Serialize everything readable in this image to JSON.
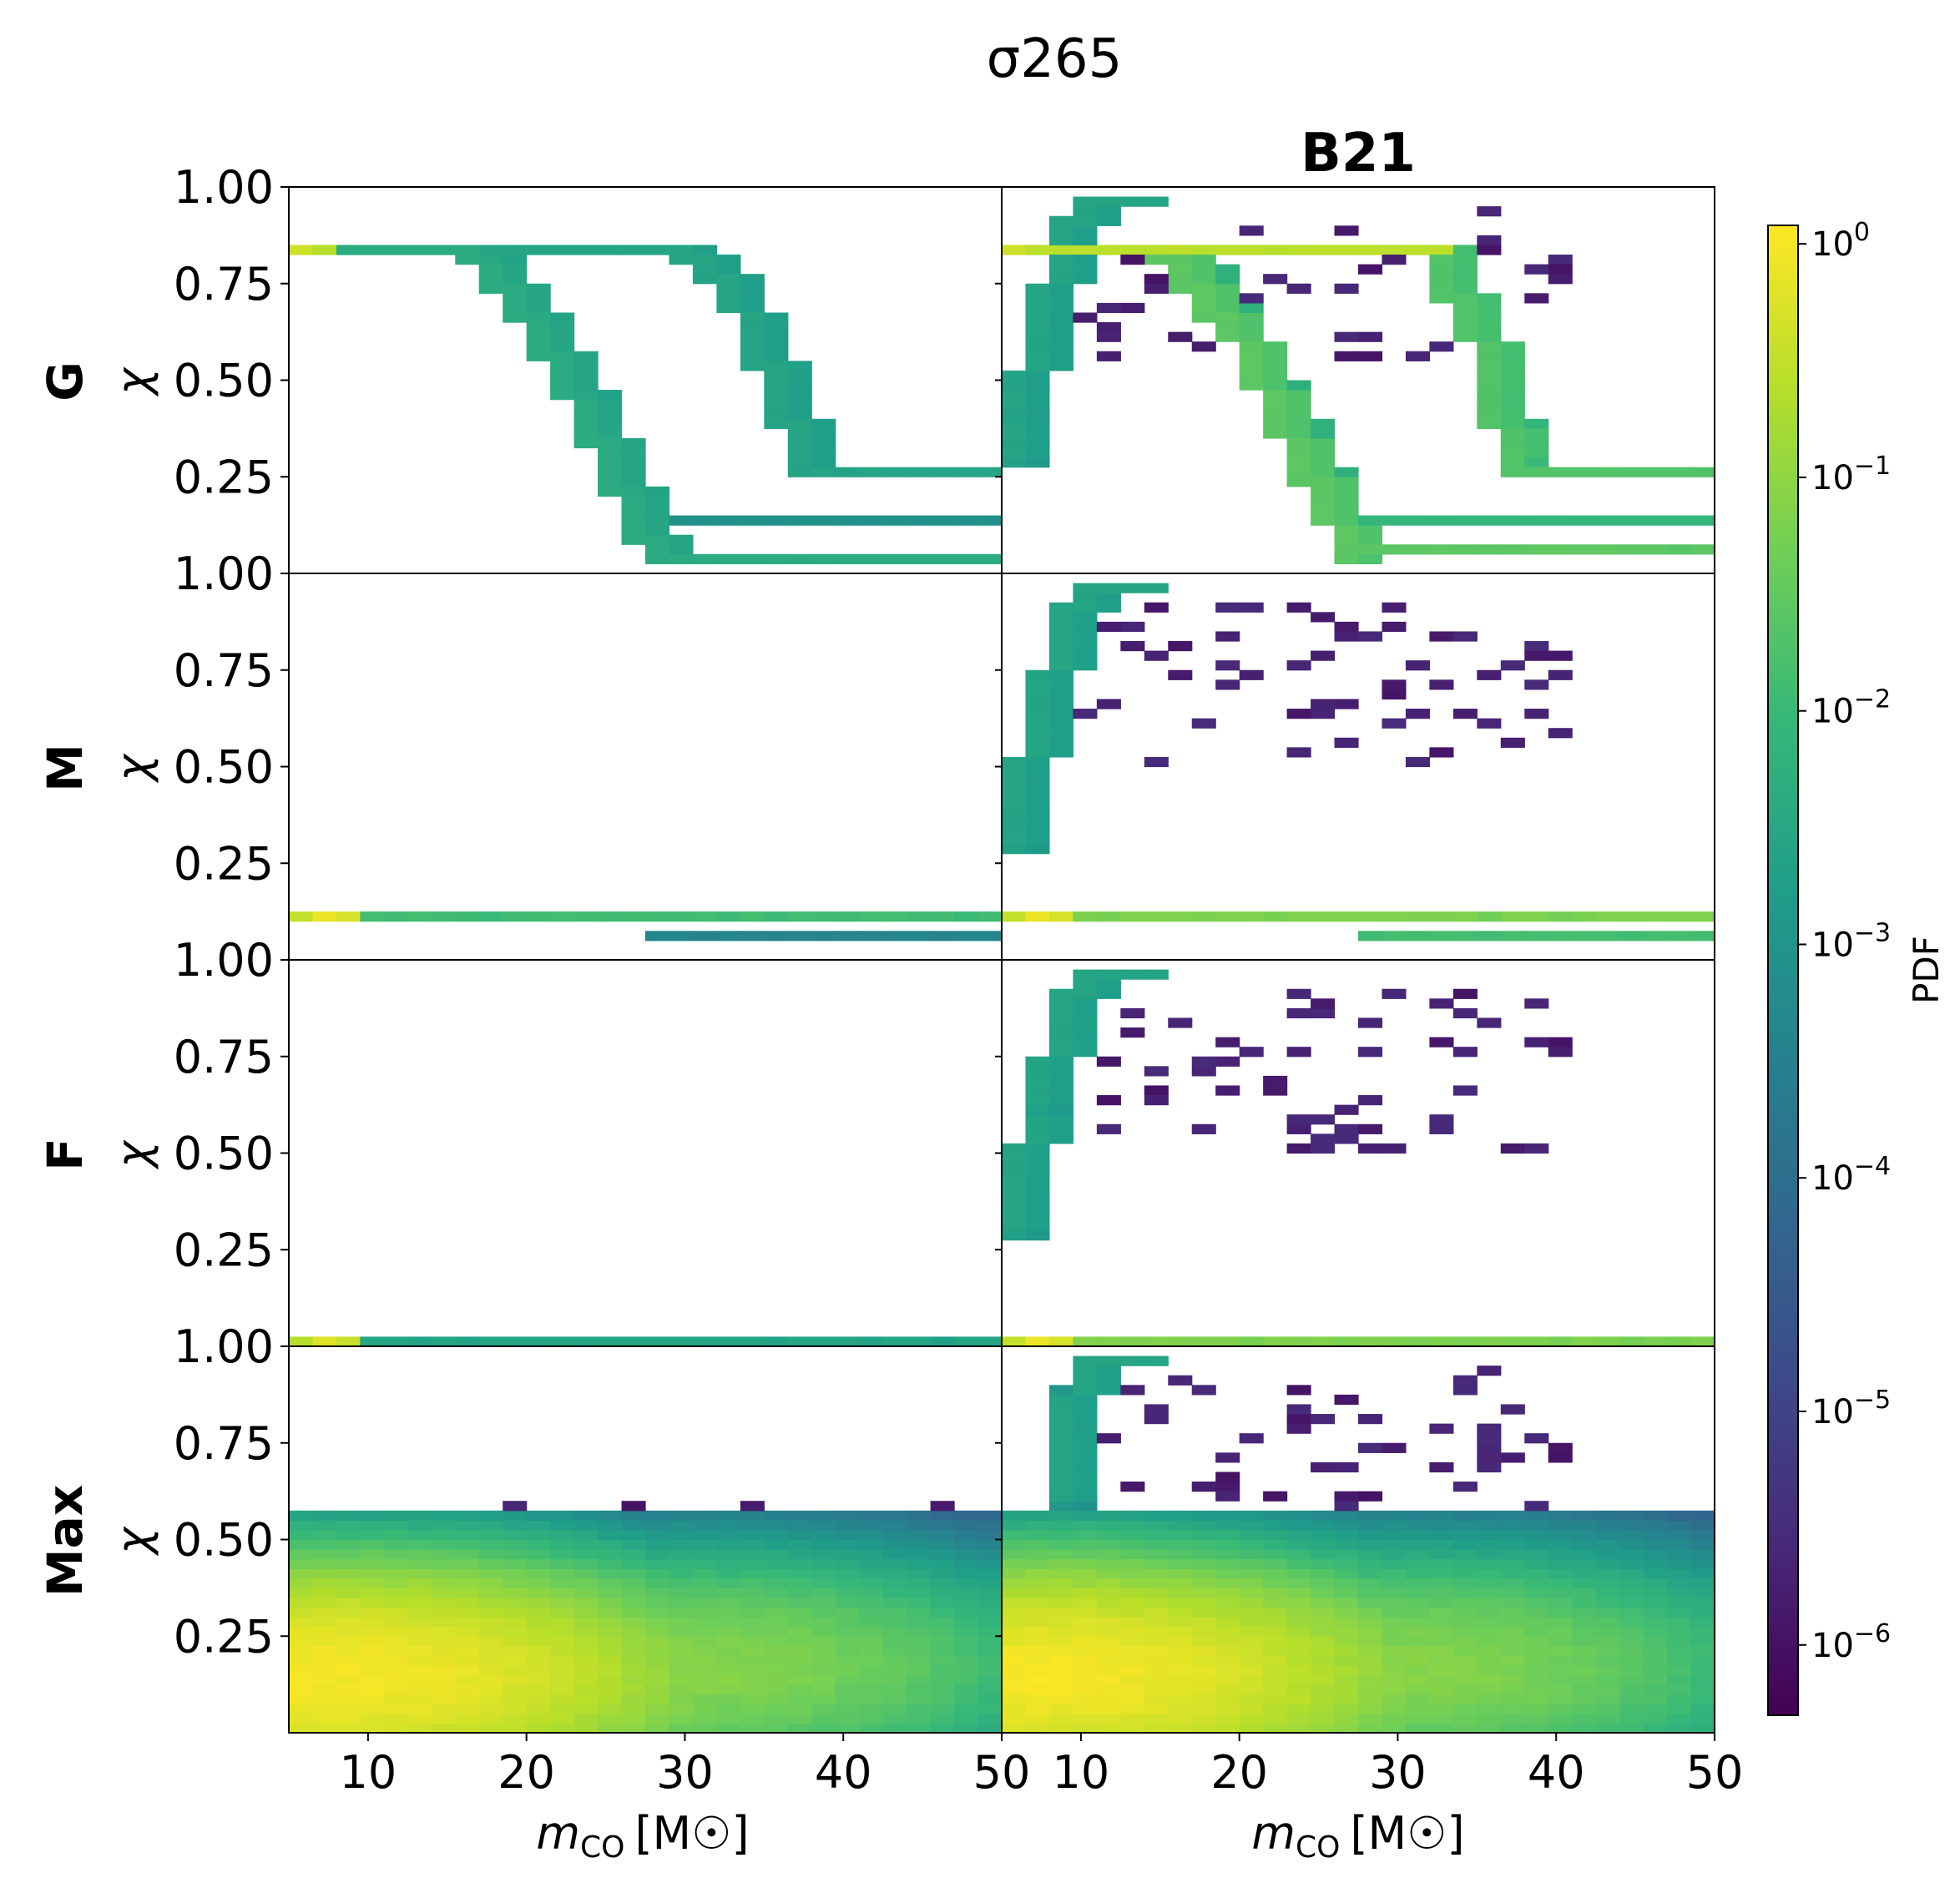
{
  "chart_data": {
    "type": "heatmap",
    "title": "σ265",
    "column_titles": [
      "",
      "B21"
    ],
    "row_labels": [
      "G",
      "M",
      "F",
      "Max"
    ],
    "ylabel": "χ",
    "xlabel": "m_CO [M☉]",
    "xlabel_main": "m",
    "xlabel_sub": "CO",
    "xlabel_unit": "[M☉]",
    "xlim": [
      5,
      50
    ],
    "ylim": [
      0,
      1
    ],
    "xticks": [
      10,
      20,
      30,
      40,
      50
    ],
    "xtick_labels": [
      "10",
      "20",
      "30",
      "40",
      "50"
    ],
    "yticks": [
      0.25,
      0.5,
      0.75,
      1.0
    ],
    "ytick_labels": [
      "0.25",
      "0.50",
      "0.75",
      "1.00"
    ],
    "bins": {
      "x_count": 30,
      "y_count": 40
    },
    "colorbar": {
      "label": "PDF",
      "scale": "log",
      "range": [
        5e-07,
        1.2
      ],
      "ticks": [
        {
          "value": 1.0,
          "base": "10",
          "exp": "0"
        },
        {
          "value": 0.1,
          "base": "10",
          "exp": "−1"
        },
        {
          "value": 0.01,
          "base": "10",
          "exp": "−2"
        },
        {
          "value": 0.001,
          "base": "10",
          "exp": "−3"
        },
        {
          "value": 0.0001,
          "base": "10",
          "exp": "−4"
        },
        {
          "value": 1e-05,
          "base": "10",
          "exp": "−5"
        },
        {
          "value": 1e-06,
          "base": "10",
          "exp": "−6"
        }
      ],
      "colormap": [
        "#440154",
        "#482878",
        "#3e4989",
        "#31688e",
        "#26828e",
        "#1f9e89",
        "#35b779",
        "#6ece58",
        "#b5de2b",
        "#fde725"
      ]
    },
    "panels": [
      {
        "row": "G",
        "col": "left",
        "tracks": [
          {
            "points": [
              [
                5,
                0.84
              ],
              [
                16,
                0.84
              ],
              [
                18,
                0.76
              ],
              [
                21,
                0.6
              ],
              [
                24,
                0.38
              ],
              [
                28,
                0.04
              ],
              [
                50,
                0.04
              ]
            ],
            "pdf": 0.003
          },
          {
            "points": [
              [
                16,
                0.84
              ],
              [
                18,
                0.76
              ],
              [
                21,
                0.6
              ],
              [
                24,
                0.38
              ],
              [
                27,
                0.14
              ],
              [
                50,
                0.14
              ]
            ],
            "pdf": 0.0006
          },
          {
            "points": [
              [
                16,
                0.84
              ],
              [
                30,
                0.84
              ],
              [
                33,
                0.72
              ],
              [
                36,
                0.45
              ],
              [
                37.5,
                0.27
              ],
              [
                50,
                0.27
              ]
            ],
            "pdf": 0.002
          }
        ],
        "peaks": [
          {
            "x": 5.5,
            "y": 0.84,
            "pdf": 0.4
          }
        ]
      },
      {
        "row": "G",
        "col": "right",
        "tracks": [
          {
            "points": [
              [
                5,
                0.84
              ],
              [
                33,
                0.84
              ]
            ],
            "pdf": 0.2
          },
          {
            "points": [
              [
                5,
                0.3
              ],
              [
                8,
                0.75
              ],
              [
                10,
                0.97
              ],
              [
                15,
                0.97
              ]
            ],
            "pdf": 0.002
          },
          {
            "points": [
              [
                15,
                0.84
              ],
              [
                20,
                0.6
              ],
              [
                23,
                0.35
              ],
              [
                27,
                0.05
              ],
              [
                50,
                0.05
              ]
            ],
            "pdf": 0.02
          },
          {
            "points": [
              [
                16,
                0.84
              ],
              [
                20,
                0.6
              ],
              [
                24,
                0.3
              ],
              [
                26,
                0.14
              ],
              [
                50,
                0.14
              ]
            ],
            "pdf": 0.006
          },
          {
            "points": [
              [
                32,
                0.84
              ],
              [
                35,
                0.6
              ],
              [
                37,
                0.3
              ],
              [
                38,
                0.27
              ],
              [
                50,
                0.27
              ]
            ],
            "pdf": 0.015
          }
        ],
        "scatter_region": {
          "x": [
            9,
            41
          ],
          "y": [
            0.55,
            0.93
          ],
          "count": 45,
          "pdf": 1e-06
        },
        "peaks": [
          {
            "x": 6,
            "y": 0.84,
            "pdf": 0.4
          }
        ]
      },
      {
        "row": "M",
        "col": "left",
        "tracks": [
          {
            "points": [
              [
                5,
                0.11
              ],
              [
                50,
                0.11
              ]
            ],
            "pdf": 0.01
          },
          {
            "points": [
              [
                28,
                0.06
              ],
              [
                50,
                0.06
              ]
            ],
            "pdf": 0.0003
          }
        ],
        "peaks": [
          {
            "x": 7.5,
            "y": 0.11,
            "pdf": 0.8
          }
        ]
      },
      {
        "row": "M",
        "col": "right",
        "tracks": [
          {
            "points": [
              [
                5,
                0.11
              ],
              [
                50,
                0.11
              ]
            ],
            "pdf": 0.05
          },
          {
            "points": [
              [
                28,
                0.06
              ],
              [
                50,
                0.06
              ]
            ],
            "pdf": 0.01
          },
          {
            "points": [
              [
                5,
                0.3
              ],
              [
                8,
                0.75
              ],
              [
                10,
                0.97
              ],
              [
                15,
                0.97
              ]
            ],
            "pdf": 0.002
          }
        ],
        "scatter_region": {
          "x": [
            9,
            41
          ],
          "y": [
            0.5,
            0.93
          ],
          "count": 60,
          "pdf": 1e-06
        },
        "peaks": [
          {
            "x": 7,
            "y": 0.11,
            "pdf": 0.8
          }
        ]
      },
      {
        "row": "F",
        "col": "left",
        "tracks": [
          {
            "points": [
              [
                5,
                0.02
              ],
              [
                50,
                0.02
              ]
            ],
            "pdf": 0.002
          }
        ],
        "peaks": [
          {
            "x": 7.5,
            "y": 0.02,
            "pdf": 0.6
          }
        ]
      },
      {
        "row": "F",
        "col": "right",
        "tracks": [
          {
            "points": [
              [
                5,
                0.02
              ],
              [
                50,
                0.02
              ]
            ],
            "pdf": 0.05
          },
          {
            "points": [
              [
                5,
                0.3
              ],
              [
                8,
                0.75
              ],
              [
                10,
                0.97
              ],
              [
                15,
                0.97
              ]
            ],
            "pdf": 0.002
          }
        ],
        "scatter_region": {
          "x": [
            9,
            41
          ],
          "y": [
            0.5,
            0.93
          ],
          "count": 60,
          "pdf": 1e-06
        },
        "peaks": [
          {
            "x": 7,
            "y": 0.02,
            "pdf": 0.8
          }
        ]
      },
      {
        "row": "Max",
        "col": "left",
        "field": {
          "y_max": 0.55,
          "hotspots": [
            {
              "x": 8,
              "y": 0.15,
              "pdf": 1.0
            },
            {
              "x": 30,
              "y": 0.17,
              "pdf": 0.08
            }
          ]
        },
        "scatter_region": {
          "x": [
            5,
            50
          ],
          "y": [
            0.52,
            0.6
          ],
          "count": 14,
          "pdf": 1e-06
        }
      },
      {
        "row": "Max",
        "col": "right",
        "field": {
          "y_max": 0.55,
          "hotspots": [
            {
              "x": 8,
              "y": 0.15,
              "pdf": 1.0
            },
            {
              "x": 30,
              "y": 0.17,
              "pdf": 0.08
            }
          ]
        },
        "tracks": [
          {
            "points": [
              [
                8,
                0.6
              ],
              [
                10,
                0.97
              ],
              [
                15,
                0.97
              ]
            ],
            "pdf": 0.002
          }
        ],
        "scatter_region": {
          "x": [
            9,
            41
          ],
          "y": [
            0.52,
            0.93
          ],
          "count": 60,
          "pdf": 1e-06
        }
      }
    ]
  }
}
